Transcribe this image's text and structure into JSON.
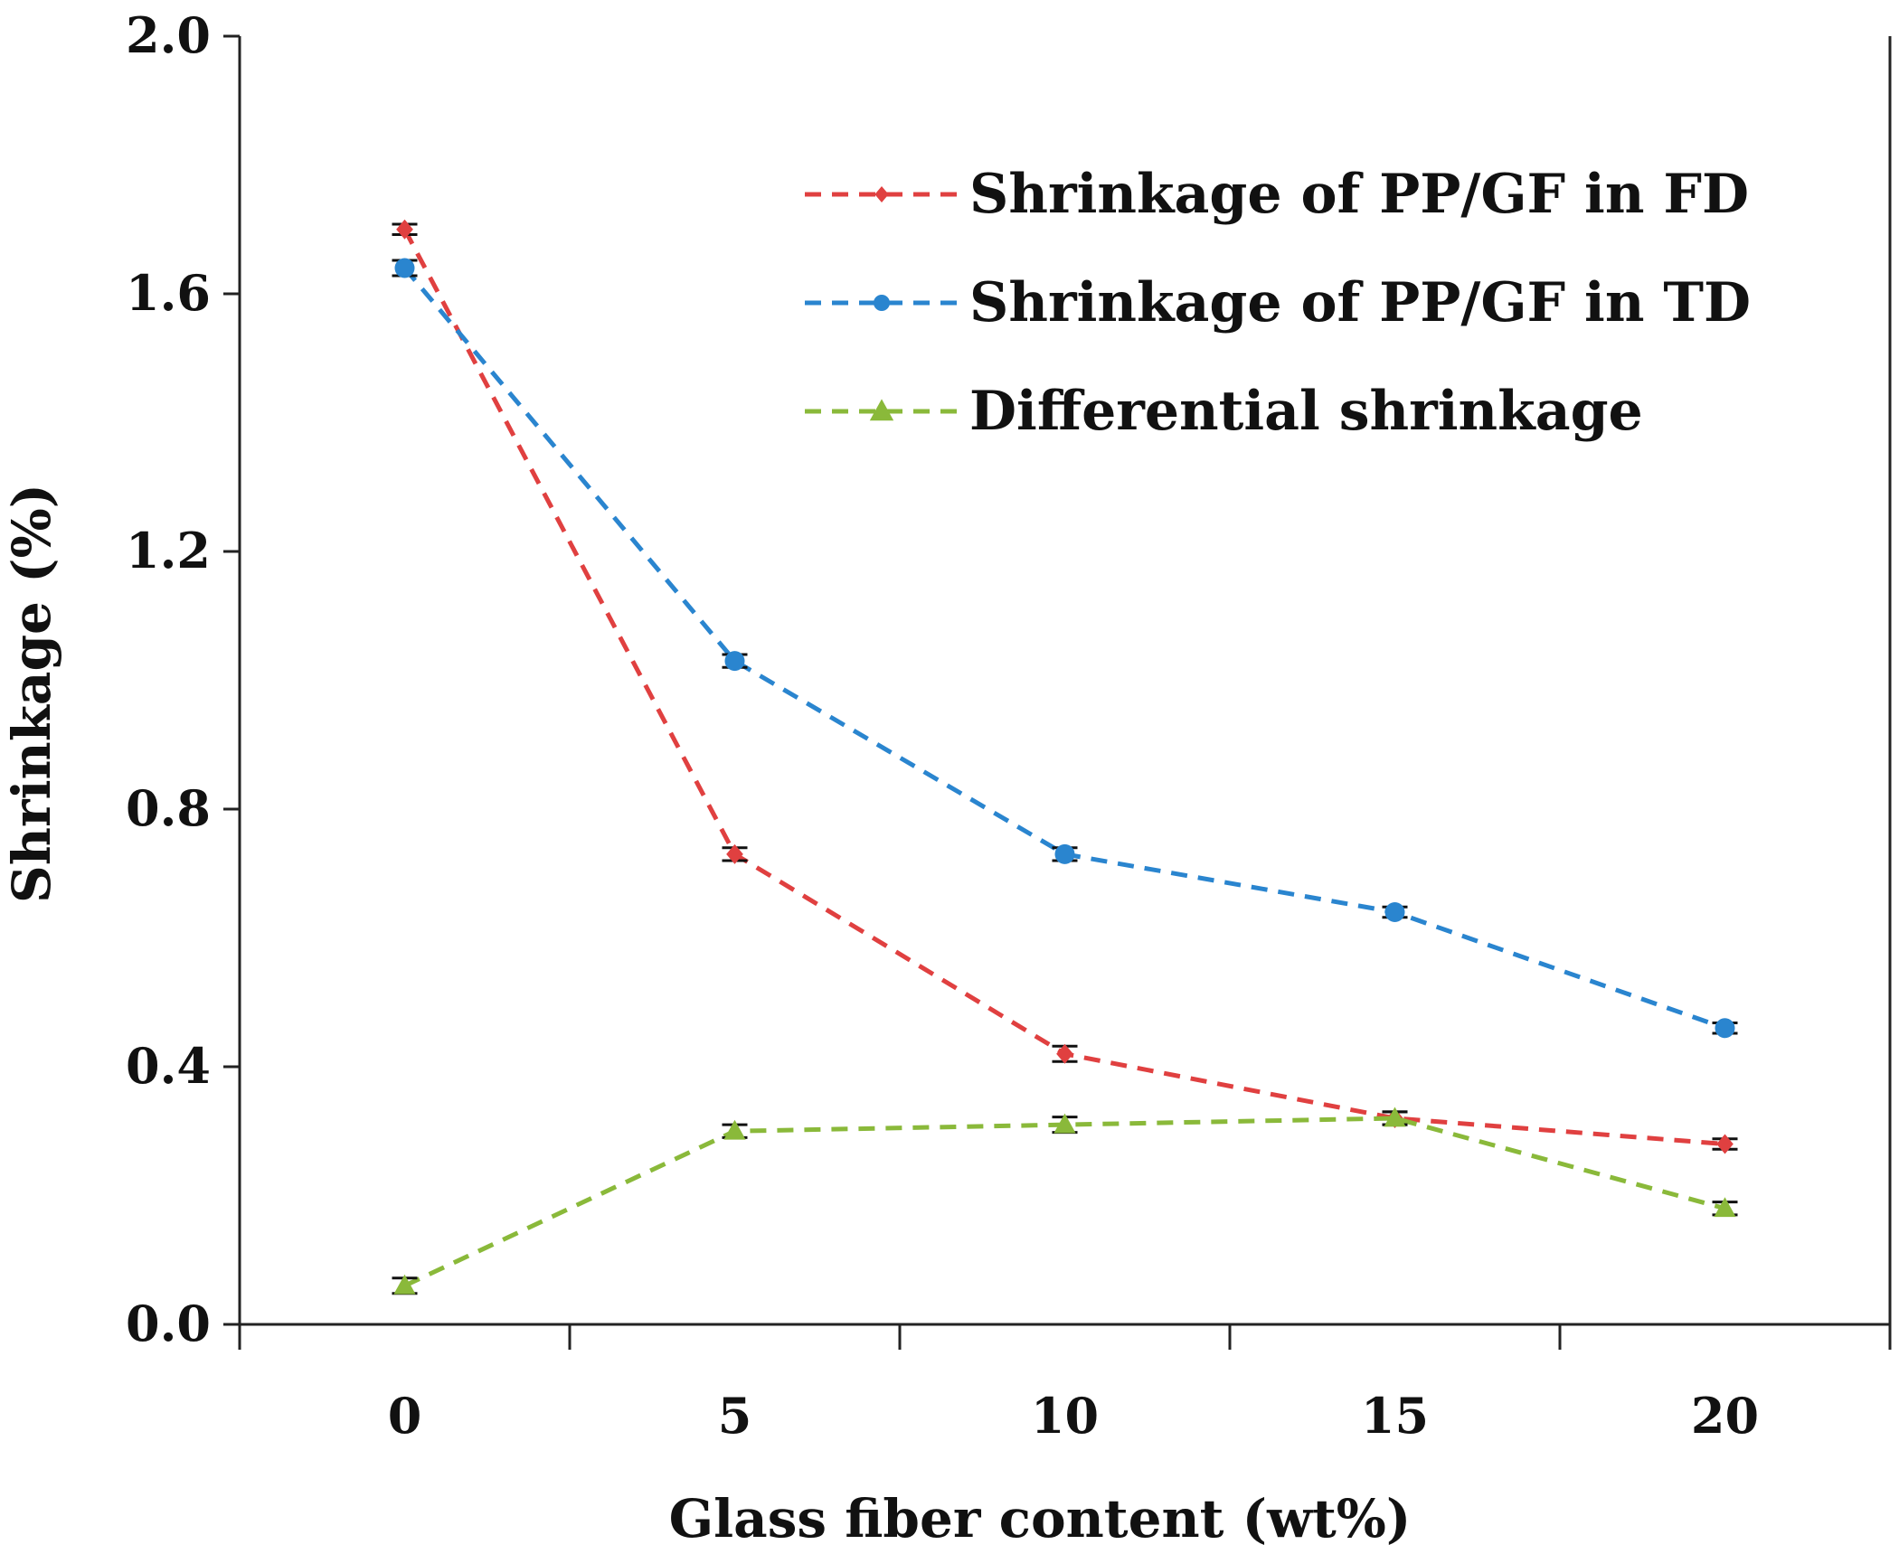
{
  "chart_data": {
    "type": "line",
    "title": "",
    "xlabel": "Glass fiber content (wt%)",
    "ylabel": "Shrinkage (%)",
    "categories": [
      "0",
      "5",
      "10",
      "15",
      "20"
    ],
    "ylim": [
      0,
      2.0
    ],
    "yticks": [
      "0.0",
      "0.4",
      "0.8",
      "1.2",
      "1.6",
      "2.0"
    ],
    "ytick_values": [
      0,
      0.4,
      0.8,
      1.2,
      1.6,
      2.0
    ],
    "grid": false,
    "legend_position": "top-right",
    "series": [
      {
        "name": "Shrinkage of PP/GF in FD",
        "color": "#e04040",
        "marker": "diamond",
        "values": [
          1.7,
          0.73,
          0.42,
          0.32,
          0.28
        ],
        "errors": [
          0.008,
          0.01,
          0.012,
          0.01,
          0.008
        ]
      },
      {
        "name": "Shrinkage of PP/GF in TD",
        "color": "#2a85cf",
        "marker": "circle",
        "values": [
          1.64,
          1.03,
          0.73,
          0.64,
          0.46
        ],
        "errors": [
          0.012,
          0.01,
          0.01,
          0.008,
          0.008
        ]
      },
      {
        "name": "Differential shrinkage",
        "color": "#8ab93a",
        "marker": "triangle",
        "values": [
          0.06,
          0.3,
          0.31,
          0.32,
          0.18
        ],
        "errors": [
          0.012,
          0.01,
          0.012,
          0.01,
          0.01
        ]
      }
    ]
  }
}
